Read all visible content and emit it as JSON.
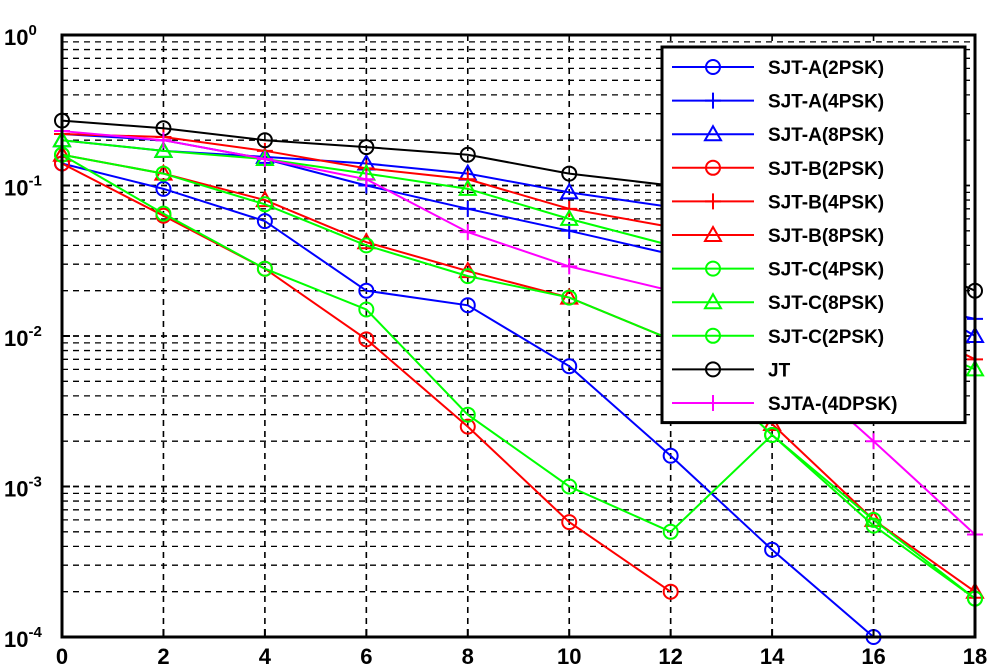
{
  "chart_data": {
    "type": "line",
    "title": "",
    "xlabel": "",
    "ylabel": "",
    "xlim": [
      0,
      18
    ],
    "ylim_log10": [
      -4,
      0
    ],
    "yscale": "log",
    "grid": true,
    "legend_position": "top-right",
    "xticks": [
      "0",
      "2",
      "4",
      "6",
      "8",
      "10",
      "12",
      "14",
      "16",
      "18"
    ],
    "yticks": [
      {
        "base": "10",
        "exp": "0"
      },
      {
        "base": "10",
        "exp": "-1"
      },
      {
        "base": "10",
        "exp": "-2"
      },
      {
        "base": "10",
        "exp": "-3"
      },
      {
        "base": "10",
        "exp": "-4"
      }
    ],
    "series": [
      {
        "name": "SJT-A(2PSK)",
        "color": "#0000ff",
        "marker": "circle",
        "x": [
          0,
          2,
          4,
          6,
          8,
          10,
          12,
          14,
          16
        ],
        "y": [
          0.14,
          0.095,
          0.058,
          0.02,
          0.016,
          0.0063,
          0.0016,
          0.00038,
          0.0001
        ]
      },
      {
        "name": "SJT-A(4PSK)",
        "color": "#0000ff",
        "marker": "plus",
        "x": [
          0,
          2,
          4,
          6,
          8,
          10,
          12,
          14,
          16,
          18
        ],
        "y": [
          0.22,
          0.2,
          0.15,
          0.1,
          0.07,
          0.05,
          0.035,
          0.025,
          0.018,
          0.013
        ]
      },
      {
        "name": "SJT-A(8PSK)",
        "color": "#0000ff",
        "marker": "triangle",
        "x": [
          0,
          2,
          4,
          6,
          8,
          10,
          12,
          14,
          16,
          18
        ],
        "y": [
          0.2,
          0.17,
          0.155,
          0.14,
          0.12,
          0.09,
          0.072,
          0.05,
          0.025,
          0.01
        ]
      },
      {
        "name": "SJT-B(2PSK)",
        "color": "#ff0000",
        "marker": "circle",
        "x": [
          0,
          2,
          4,
          6,
          8,
          10,
          12
        ],
        "y": [
          0.14,
          0.063,
          0.028,
          0.0095,
          0.0025,
          0.00058,
          0.0002
        ]
      },
      {
        "name": "SJT-B(4PSK)",
        "color": "#ff0000",
        "marker": "plus",
        "x": [
          0,
          2,
          4,
          6,
          8,
          10,
          12,
          14,
          16,
          18
        ],
        "y": [
          0.22,
          0.21,
          0.17,
          0.13,
          0.11,
          0.07,
          0.053,
          0.03,
          0.015,
          0.007
        ]
      },
      {
        "name": "SJT-B(8PSK)",
        "color": "#ff0000",
        "marker": "triangle",
        "x": [
          0,
          2,
          4,
          6,
          8,
          10,
          12,
          14,
          16,
          18
        ],
        "y": [
          0.16,
          0.12,
          0.08,
          0.042,
          0.027,
          0.018,
          0.0095,
          0.0026,
          0.0006,
          0.0002
        ]
      },
      {
        "name": "SJT-C(4PSK)",
        "color": "#00ff00",
        "marker": "circle",
        "x": [
          0,
          2,
          4,
          6,
          8,
          10,
          12,
          14,
          16,
          18
        ],
        "y": [
          0.16,
          0.065,
          0.028,
          0.015,
          0.003,
          0.001,
          0.0005,
          0.0022,
          0.00055,
          0.00018
        ]
      },
      {
        "name": "SJT-C(8PSK)",
        "color": "#00ff00",
        "marker": "triangle",
        "x": [
          0,
          2,
          4,
          6,
          8,
          10,
          12,
          14,
          16,
          18
        ],
        "y": [
          0.2,
          0.17,
          0.15,
          0.12,
          0.095,
          0.06,
          0.04,
          0.025,
          0.012,
          0.006
        ]
      },
      {
        "name": "SJT-C(2PSK)",
        "color": "#00ff00",
        "marker": "circle",
        "x": [
          0,
          2,
          4,
          6,
          8,
          10,
          12,
          14,
          16,
          18
        ],
        "y": [
          0.16,
          0.12,
          0.075,
          0.04,
          0.025,
          0.018,
          0.0095,
          0.0022,
          0.0006,
          0.00018
        ]
      },
      {
        "name": "JT",
        "color": "#000000",
        "marker": "circle",
        "x": [
          0,
          2,
          4,
          6,
          8,
          10,
          12,
          14,
          16,
          18
        ],
        "y": [
          0.27,
          0.24,
          0.2,
          0.18,
          0.16,
          0.12,
          0.1,
          0.07,
          0.04,
          0.02
        ]
      },
      {
        "name": "SJTA-(4DPSK)",
        "color": "#ff00ff",
        "marker": "plus",
        "x": [
          0,
          2,
          4,
          6,
          8,
          10,
          12,
          14,
          16,
          18
        ],
        "y": [
          0.23,
          0.2,
          0.15,
          0.11,
          0.049,
          0.029,
          0.02,
          0.008,
          0.002,
          0.00048
        ]
      }
    ]
  }
}
